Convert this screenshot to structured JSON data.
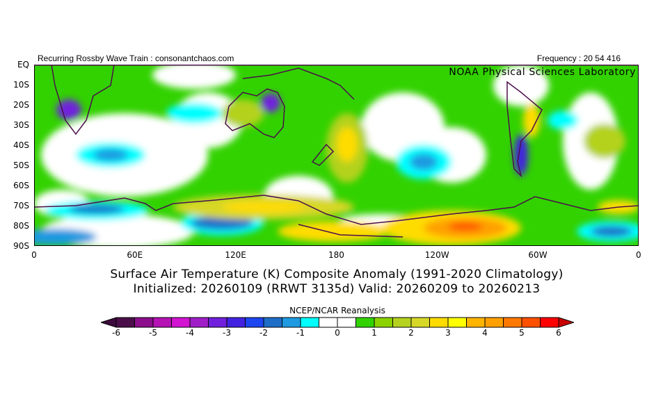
{
  "header": {
    "left": "Recurring Rossby Wave Train : consonantchaos.com",
    "right": "Frequency : 20 54 416",
    "lab": "NOAA Physical Sciences Laboratory"
  },
  "axes": {
    "lat_labels": [
      "EQ",
      "10S",
      "20S",
      "30S",
      "40S",
      "50S",
      "60S",
      "70S",
      "80S",
      "90S"
    ],
    "lon_labels": [
      "0",
      "60E",
      "120E",
      "180",
      "120W",
      "60W",
      "0"
    ]
  },
  "title": {
    "line1": "Surface Air Temperature (K) Composite Anomaly (1991-2020 Climatology)",
    "line2": "Initialized: 20260109 (RRWT 3135d) Valid: 20260209 to 20260213"
  },
  "colorbar": {
    "title": "NCEP/NCAR Reanalysis",
    "tick_labels": [
      "-6",
      "-5",
      "-4",
      "-3",
      "-2",
      "-1",
      "0",
      "1",
      "2",
      "3",
      "4",
      "5",
      "6"
    ],
    "range": [
      -6,
      6
    ],
    "step": 0.5,
    "colors": [
      "#4a0e4a",
      "#8c0e8c",
      "#b412b4",
      "#d214d2",
      "#a01ec8",
      "#7020dc",
      "#4222e0",
      "#1e46f0",
      "#1e6ec8",
      "#1e9ae0",
      "#00ffff",
      "#ffffff",
      "#ffffff",
      "#32d200",
      "#8cd200",
      "#b4d21e",
      "#d7d728",
      "#ffdc00",
      "#ffff00",
      "#ffb400",
      "#ffa000",
      "#ff7800",
      "#ff5000",
      "#ff0000"
    ],
    "under_color": "#3c0a3c",
    "over_color": "#c80000"
  }
}
